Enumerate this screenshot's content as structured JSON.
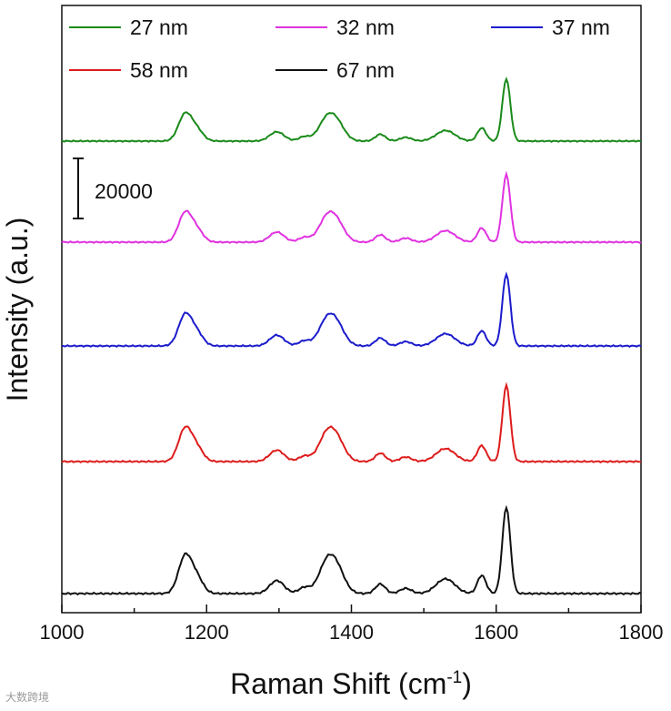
{
  "chart_data": {
    "type": "line",
    "title": "",
    "xlabel": "Raman Shift (cm",
    "xlabel_sup": "-1",
    "xlabel_close": ")",
    "ylabel": "Intensity (a.u.)",
    "xlim": [
      1000,
      1800
    ],
    "x_ticks": [
      1000,
      1200,
      1400,
      1600,
      1800
    ],
    "x_tick_labels": [
      "1000",
      "1200",
      "1400",
      "1600",
      "1800"
    ],
    "scale_bar": {
      "value": 20000,
      "label": "20000"
    },
    "peaks": [
      {
        "center": 1170,
        "width": 9,
        "base_height": 0.42
      },
      {
        "center": 1186,
        "width": 9,
        "base_height": 0.18
      },
      {
        "center": 1297,
        "width": 10,
        "base_height": 0.15
      },
      {
        "center": 1335,
        "width": 8,
        "base_height": 0.07
      },
      {
        "center": 1365,
        "width": 11,
        "base_height": 0.31
      },
      {
        "center": 1380,
        "width": 11,
        "base_height": 0.26
      },
      {
        "center": 1440,
        "width": 7,
        "base_height": 0.11
      },
      {
        "center": 1475,
        "width": 8,
        "base_height": 0.06
      },
      {
        "center": 1530,
        "width": 13,
        "base_height": 0.17
      },
      {
        "center": 1580,
        "width": 6,
        "base_height": 0.21
      },
      {
        "center": 1614,
        "width": 5.5,
        "base_height": 1.0
      }
    ],
    "series": [
      {
        "name": "27 nm",
        "color": "#1a8a1a",
        "scale": 0.72
      },
      {
        "name": "32 nm",
        "color": "#e032e0",
        "scale": 0.78
      },
      {
        "name": "37 nm",
        "color": "#1c1ccc",
        "scale": 0.83
      },
      {
        "name": "58 nm",
        "color": "#dd1c1c",
        "scale": 0.88
      },
      {
        "name": "67 nm",
        "color": "#111111",
        "scale": 1.0
      }
    ],
    "legend": {
      "rows": [
        [
          "27 nm",
          "32 nm",
          "37 nm"
        ],
        [
          "58 nm",
          "67 nm"
        ]
      ],
      "placement": "top"
    },
    "watermark": "大数跨境"
  }
}
